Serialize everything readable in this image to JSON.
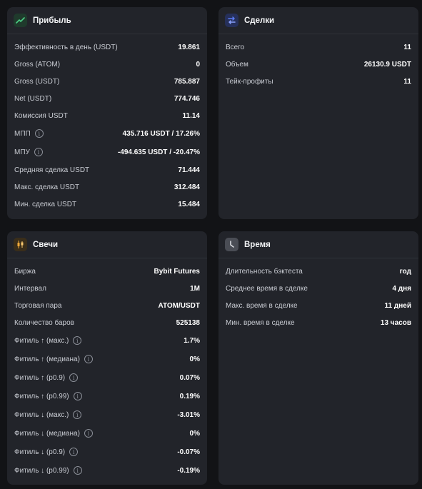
{
  "profit": {
    "title": "Прибыль",
    "rows": [
      {
        "label": "Эффективность в день (USDT)",
        "value": "19.861"
      },
      {
        "label": "Gross (ATOM)",
        "value": "0"
      },
      {
        "label": "Gross (USDT)",
        "value": "785.887"
      },
      {
        "label": "Net (USDT)",
        "value": "774.746"
      },
      {
        "label": "Комиссия USDT",
        "value": "11.14"
      },
      {
        "label": "МПП",
        "value": "435.716 USDT / 17.26%"
      },
      {
        "label": "МПУ",
        "value": "-494.635 USDT / -20.47%"
      },
      {
        "label": "Средняя сделка USDT",
        "value": "71.444"
      },
      {
        "label": "Макс. сделка USDT",
        "value": "312.484"
      },
      {
        "label": "Мин. сделка USDT",
        "value": "15.484"
      }
    ]
  },
  "deals": {
    "title": "Сделки",
    "rows": [
      {
        "label": "Всего",
        "value": "11"
      },
      {
        "label": "Объем",
        "value": "26130.9 USDT"
      },
      {
        "label": "Тейк-профиты",
        "value": "11"
      }
    ]
  },
  "candles": {
    "title": "Свечи",
    "rows": [
      {
        "label": "Биржа",
        "value": "Bybit Futures"
      },
      {
        "label": "Интервал",
        "value": "1M"
      },
      {
        "label": "Торговая пара",
        "value": "ATOM/USDT"
      },
      {
        "label": "Количество баров",
        "value": "525138"
      },
      {
        "label": "Фитиль ↑ (макс.)",
        "value": "1.7%"
      },
      {
        "label": "Фитиль ↑ (медиана)",
        "value": "0%"
      },
      {
        "label": "Фитиль ↑ (p0.9)",
        "value": "0.07%"
      },
      {
        "label": "Фитиль ↑ (p0.99)",
        "value": "0.19%"
      },
      {
        "label": "Фитиль ↓ (макс.)",
        "value": "-3.01%"
      },
      {
        "label": "Фитиль ↓ (медиана)",
        "value": "0%"
      },
      {
        "label": "Фитиль ↓ (p0.9)",
        "value": "-0.07%"
      },
      {
        "label": "Фитиль ↓ (p0.99)",
        "value": "-0.19%"
      }
    ]
  },
  "time": {
    "title": "Время",
    "rows": [
      {
        "label": "Длительность бэктеста",
        "value": "год"
      },
      {
        "label": "Среднее время в сделке",
        "value": "4 дня"
      },
      {
        "label": "Макс. время в сделке",
        "value": "11 дней"
      },
      {
        "label": "Мин. время в сделке",
        "value": "13 часов"
      }
    ]
  },
  "icons": {
    "profit": "trend-chart-icon",
    "deals": "arrows-exchange-icon",
    "candles": "candles-icon",
    "time": "clock-icon",
    "info": "info-icon"
  },
  "colors": {
    "background": "#121316",
    "card": "#22242a",
    "profit_icon": "#4ccf86",
    "deals_icon": "#5b7cf5",
    "candles_icon": "#f0a93b",
    "time_icon": "#d9dbe0"
  }
}
